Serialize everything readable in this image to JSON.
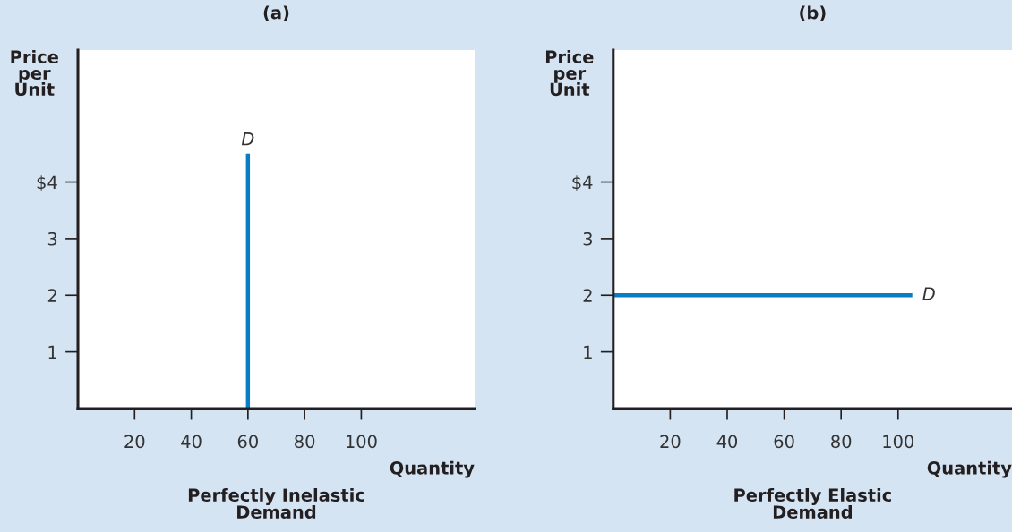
{
  "chart_data": [
    {
      "type": "line",
      "title": "(a)",
      "xlabel": "Quantity",
      "ylabel": "Price\nper\nUnit",
      "xlim": [
        0,
        140
      ],
      "xticks": [
        20,
        40,
        60,
        80,
        100
      ],
      "ylim": [
        0,
        6.33
      ],
      "yticks": [
        1,
        2,
        3,
        {
          "value": 4,
          "label": "$4"
        }
      ],
      "grid": false,
      "legend": false,
      "marker": "none",
      "line_style": "solid",
      "series": [
        {
          "name": "D",
          "color": "#0a7cc4",
          "x": [
            60,
            60
          ],
          "values": [
            0,
            4.5
          ]
        }
      ],
      "annotations": [
        "Perfectly Inelastic\nDemand"
      ]
    },
    {
      "type": "line",
      "title": "(b)",
      "xlabel": "Quantity",
      "ylabel": "Price\nper\nUnit",
      "xlim": [
        0,
        140
      ],
      "xticks": [
        20,
        40,
        60,
        80,
        100
      ],
      "ylim": [
        0,
        6.33
      ],
      "yticks": [
        1,
        2,
        3,
        {
          "value": 4,
          "label": "$4"
        }
      ],
      "grid": false,
      "legend": false,
      "marker": "none",
      "line_style": "solid",
      "series": [
        {
          "name": "D",
          "color": "#0a7cc4",
          "x": [
            0,
            105
          ],
          "values": [
            2,
            2
          ]
        }
      ],
      "annotations": [
        "Perfectly Elastic\nDemand"
      ]
    }
  ]
}
